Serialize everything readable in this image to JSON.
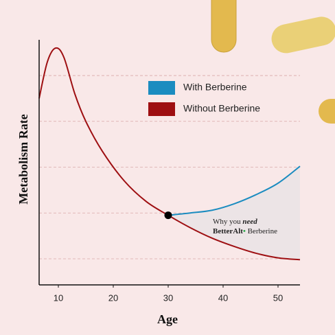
{
  "chart_data": {
    "type": "line",
    "x_label": "Age",
    "y_label": "Metabolism Rate",
    "x": [
      6.5,
      8,
      9.5,
      11,
      13,
      15,
      18,
      22,
      26,
      30,
      34,
      38,
      42,
      46,
      50,
      54
    ],
    "series": [
      {
        "name": "With Berberine",
        "color": "#1b8cc0",
        "values": [
          null,
          null,
          null,
          null,
          null,
          null,
          null,
          null,
          null,
          0.95,
          1.0,
          1.06,
          1.2,
          1.4,
          1.65,
          2.02
        ]
      },
      {
        "name": "Without Berberine",
        "color": "#9e0f12",
        "values": [
          3.5,
          4.3,
          4.6,
          4.4,
          3.6,
          3.0,
          2.35,
          1.7,
          1.25,
          0.95,
          0.68,
          0.45,
          0.27,
          0.12,
          0.02,
          -0.02
        ]
      }
    ],
    "xlim": [
      6.5,
      54
    ],
    "ylim": [
      -0.57,
      4.78
    ],
    "xticks": [
      10,
      20,
      30,
      40,
      50
    ],
    "ygrid": [
      0,
      1,
      2,
      3,
      4
    ],
    "annotation": {
      "line1": "Why you",
      "line1_bold": "need",
      "brand": "BetterAlt",
      "product": "Berberine"
    }
  }
}
